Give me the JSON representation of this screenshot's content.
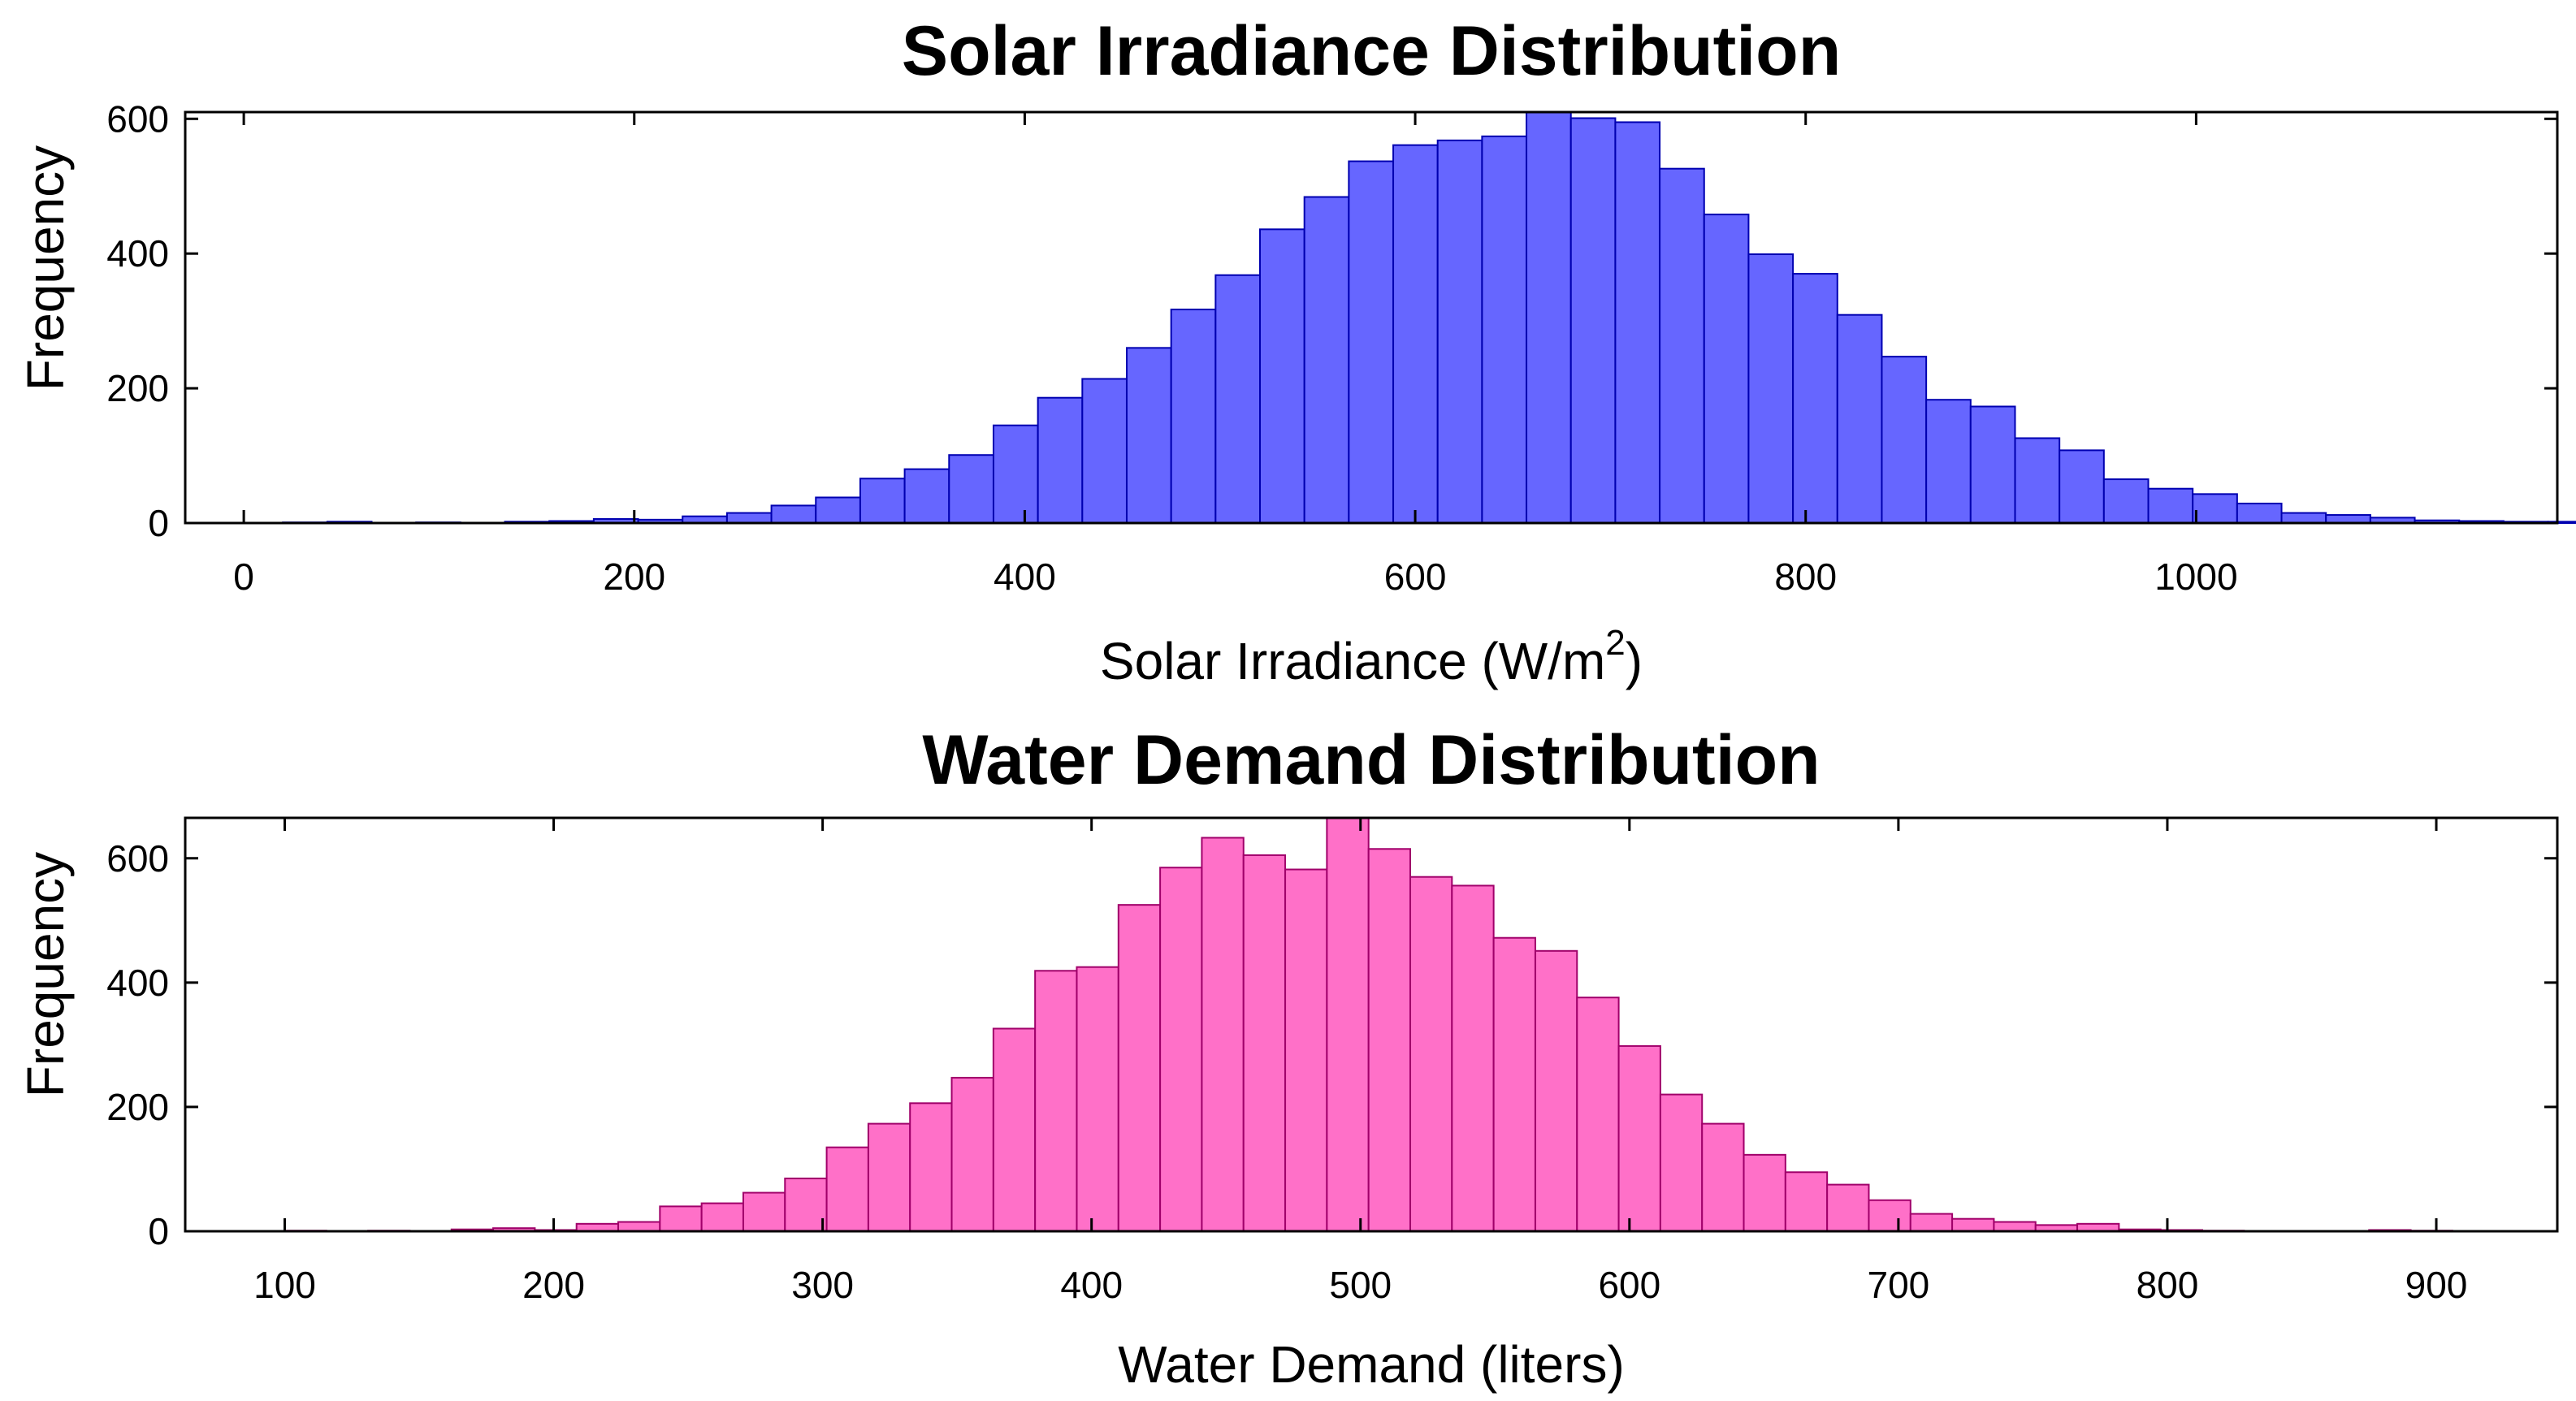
{
  "chart_data": [
    {
      "type": "bar",
      "title": "Solar Irradiance Distribution",
      "xlabel": "Solar Irradiance (W/m",
      "xlabel_superscript": "2",
      "xlabel_suffix": ")",
      "ylabel": "Frequency",
      "xlim": [
        -30,
        1185
      ],
      "ylim": [
        0,
        610
      ],
      "xticks": [
        0,
        200,
        400,
        600,
        800,
        1000
      ],
      "yticks": [
        0,
        200,
        400,
        600
      ],
      "grid": false,
      "bin_start": 20,
      "bin_width": 22.75,
      "values": [
        1,
        2,
        0,
        1,
        0,
        2,
        3,
        6,
        5,
        10,
        15,
        26,
        38,
        66,
        80,
        101,
        145,
        186,
        214,
        260,
        317,
        368,
        436,
        484,
        537,
        561,
        568,
        574,
        610,
        601,
        595,
        526,
        458,
        399,
        370,
        309,
        247,
        183,
        173,
        126,
        108,
        65,
        51,
        43,
        29,
        15,
        12,
        8,
        4,
        3,
        2,
        2
      ],
      "fill": "#6666ff",
      "stroke": "#0000b0"
    },
    {
      "type": "bar",
      "title": "Water Demand Distribution",
      "xlabel": "Water Demand (liters)",
      "ylabel": "Frequency",
      "xlim": [
        63,
        945
      ],
      "ylim": [
        0,
        665
      ],
      "xticks": [
        100,
        200,
        300,
        400,
        500,
        600,
        700,
        800,
        900
      ],
      "yticks": [
        0,
        200,
        400,
        600
      ],
      "grid": false,
      "bin_start": 100,
      "bin_width": 15.5,
      "values": [
        1,
        0,
        1,
        0,
        3,
        5,
        2,
        12,
        15,
        40,
        45,
        62,
        85,
        135,
        173,
        206,
        247,
        326,
        419,
        425,
        525,
        585,
        633,
        605,
        582,
        665,
        615,
        570,
        556,
        472,
        451,
        376,
        298,
        220,
        173,
        123,
        95,
        75,
        50,
        28,
        20,
        15,
        10,
        12,
        3,
        2,
        1,
        0,
        0,
        0,
        2,
        1
      ],
      "fill": "#ff70c8",
      "stroke": "#a0006a"
    }
  ]
}
